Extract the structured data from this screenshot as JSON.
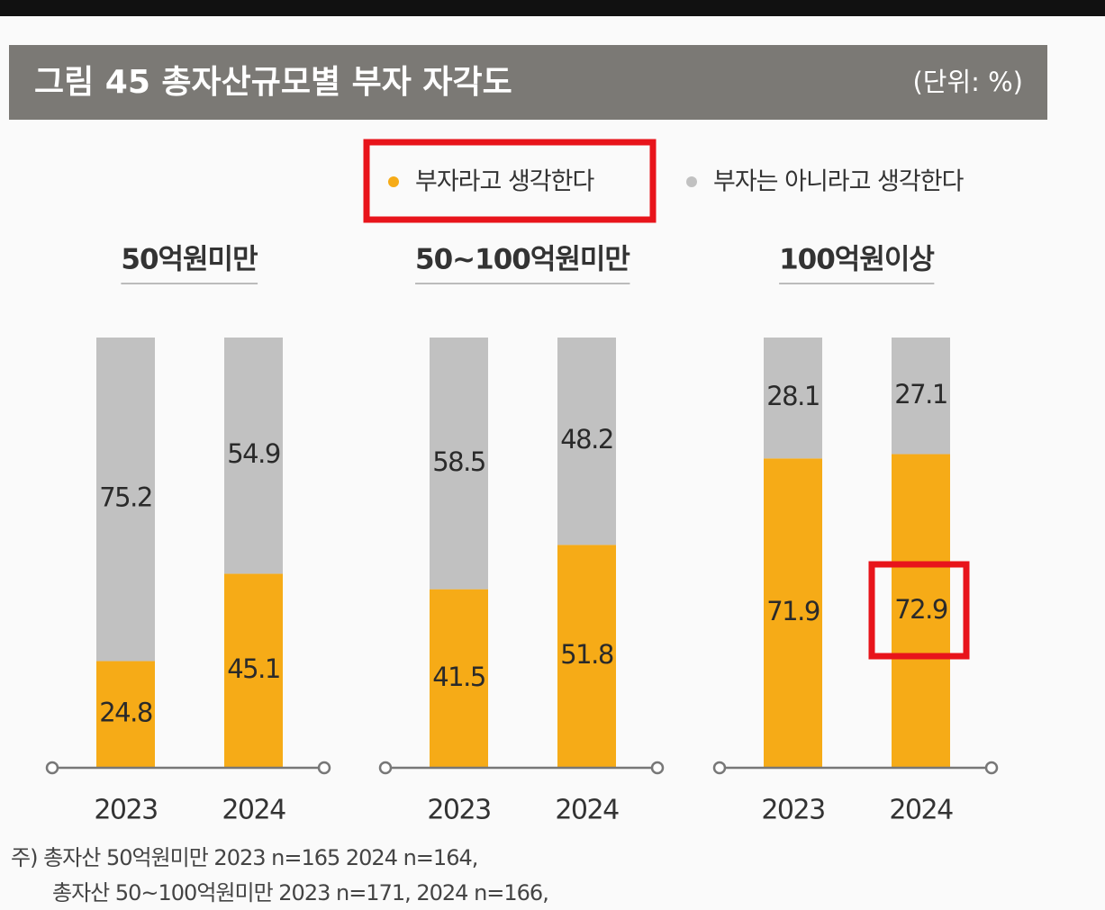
{
  "chart_data": {
    "type": "bar",
    "stacked": true,
    "title": "그림 45  총자산규모별 부자 자각도",
    "subtitle": "(단위: %)",
    "ylim": [
      0,
      100
    ],
    "series": [
      {
        "name": "부자라고 생각한다",
        "color": "#f6ab17",
        "values": [
          [
            24.8,
            45.1
          ],
          [
            41.5,
            51.8
          ],
          [
            71.9,
            72.9
          ]
        ]
      },
      {
        "name": "부자는 아니라고 생각한다",
        "color": "#c1c1c1",
        "values": [
          [
            75.2,
            54.9
          ],
          [
            58.5,
            48.2
          ],
          [
            28.1,
            27.1
          ]
        ]
      }
    ],
    "panels": [
      {
        "title": "50억원미만",
        "categories": [
          "2023",
          "2024"
        ]
      },
      {
        "title": "50~100억원미만",
        "categories": [
          "2023",
          "2024"
        ]
      },
      {
        "title": "100억원이상",
        "categories": [
          "2023",
          "2024"
        ]
      }
    ]
  },
  "footnote": {
    "lines": [
      "주) 총자산 50억원미만 2023 n=165 2024 n=164,",
      "총자산 50~100억원미만 2023 n=171, 2024 n=166,"
    ]
  }
}
